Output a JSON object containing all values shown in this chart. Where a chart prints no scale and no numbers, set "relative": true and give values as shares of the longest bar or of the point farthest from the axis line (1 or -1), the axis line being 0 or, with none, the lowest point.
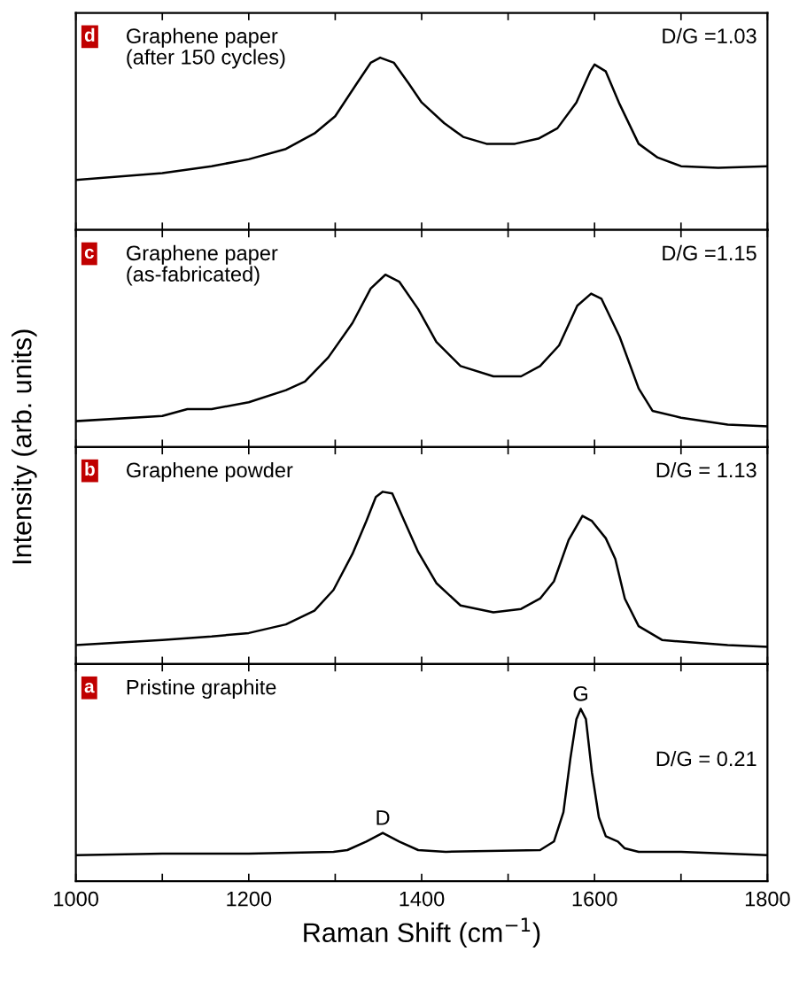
{
  "chart_data": [
    {
      "type": "line",
      "title": "Graphene paper\n(after 150 cycles)",
      "ylabel": "Intensity (arb. units)",
      "annotations": [
        "d",
        "D/G =1.03"
      ],
      "relative": true,
      "xlim": [
        1000,
        1800
      ],
      "xticks": [
        1000,
        {
          "value": 1100,
          "label": null
        },
        1200,
        {
          "value": 1300,
          "label": null
        },
        1400,
        {
          "value": 1500,
          "label": null
        },
        1600,
        {
          "value": 1700,
          "label": null
        },
        1800
      ],
      "tick_labels": false,
      "series": [
        {
          "color": "#000000",
          "x": [
            1000,
            1100,
            1157,
            1200,
            1243,
            1276,
            1300,
            1325,
            1341,
            1352,
            1368,
            1385,
            1400,
            1426,
            1448,
            1475,
            1508,
            1535,
            1557,
            1579,
            1595,
            1600,
            1613,
            1629,
            1651,
            1673,
            1700,
            1743,
            1800
          ],
          "values": [
            0.29,
            0.33,
            0.37,
            0.41,
            0.47,
            0.56,
            0.66,
            0.85,
            0.97,
            1,
            0.97,
            0.85,
            0.74,
            0.62,
            0.54,
            0.5,
            0.5,
            0.53,
            0.59,
            0.74,
            0.92,
            0.96,
            0.92,
            0.73,
            0.5,
            0.42,
            0.37,
            0.36,
            0.37
          ]
        }
      ]
    },
    {
      "type": "line",
      "title": "Graphene paper\n(as-fabricated)",
      "annotations": [
        "c",
        "D/G =1.15"
      ],
      "relative": true,
      "xlim": [
        1000,
        1800
      ],
      "xticks": [
        1000,
        {
          "value": 1100,
          "label": null
        },
        1200,
        {
          "value": 1300,
          "label": null
        },
        1400,
        {
          "value": 1500,
          "label": null
        },
        1600,
        {
          "value": 1700,
          "label": null
        },
        1800
      ],
      "tick_labels": false,
      "series": [
        {
          "color": "#000000",
          "x": [
            1000,
            1100,
            1129,
            1157,
            1200,
            1243,
            1265,
            1292,
            1320,
            1341,
            1358,
            1374,
            1396,
            1417,
            1445,
            1483,
            1515,
            1537,
            1559,
            1580,
            1596,
            1608,
            1629,
            1651,
            1667,
            1700,
            1754,
            1800
          ],
          "values": [
            0.15,
            0.18,
            0.22,
            0.22,
            0.26,
            0.33,
            0.38,
            0.52,
            0.72,
            0.92,
            1,
            0.96,
            0.8,
            0.61,
            0.47,
            0.41,
            0.41,
            0.47,
            0.59,
            0.82,
            0.89,
            0.86,
            0.64,
            0.34,
            0.21,
            0.17,
            0.13,
            0.12
          ]
        }
      ]
    },
    {
      "type": "line",
      "title": "Graphene powder",
      "annotations": [
        "b",
        "D/G = 1.13"
      ],
      "relative": true,
      "xlim": [
        1000,
        1800
      ],
      "xticks": [
        1000,
        {
          "value": 1100,
          "label": null
        },
        1200,
        {
          "value": 1300,
          "label": null
        },
        1400,
        {
          "value": 1500,
          "label": null
        },
        1600,
        {
          "value": 1700,
          "label": null
        },
        1800
      ],
      "tick_labels": false,
      "series": [
        {
          "color": "#000000",
          "x": [
            1000,
            1100,
            1157,
            1200,
            1243,
            1276,
            1298,
            1320,
            1336,
            1347,
            1355,
            1366,
            1380,
            1396,
            1417,
            1445,
            1483,
            1515,
            1537,
            1553,
            1570,
            1586,
            1597,
            1613,
            1624,
            1635,
            1651,
            1678,
            1700,
            1754,
            1800
          ],
          "values": [
            0.11,
            0.14,
            0.16,
            0.18,
            0.23,
            0.31,
            0.43,
            0.64,
            0.83,
            0.97,
            1,
            0.99,
            0.83,
            0.65,
            0.47,
            0.34,
            0.3,
            0.32,
            0.38,
            0.48,
            0.72,
            0.86,
            0.83,
            0.73,
            0.61,
            0.38,
            0.22,
            0.14,
            0.13,
            0.11,
            0.1
          ]
        }
      ]
    },
    {
      "type": "line",
      "title": "Pristine graphite",
      "xlabel": "Raman Shift (cm$^{−1}$)",
      "annotations": [
        "a",
        "D/G = 0.21",
        {
          "text": "D",
          "x": 1355,
          "y": 0.28
        },
        {
          "text": "G",
          "x": 1584,
          "y": 1
        }
      ],
      "relative": true,
      "xlim": [
        1000,
        1800
      ],
      "xticks": [
        1000,
        {
          "value": 1100,
          "label": null
        },
        1200,
        {
          "value": 1300,
          "label": null
        },
        1400,
        {
          "value": 1500,
          "label": null
        },
        1600,
        {
          "value": 1700,
          "label": null
        },
        1800
      ],
      "tick_labels": "x",
      "series": [
        {
          "color": "#000000",
          "x": [
            1000,
            1100,
            1129,
            1200,
            1298,
            1314,
            1336,
            1355,
            1374,
            1396,
            1428,
            1537,
            1553,
            1564,
            1572,
            1579,
            1584,
            1590,
            1597,
            1605,
            1613,
            1627,
            1635,
            1651,
            1700,
            1800
          ],
          "values": [
            0.15,
            0.16,
            0.16,
            0.16,
            0.17,
            0.18,
            0.23,
            0.28,
            0.23,
            0.18,
            0.17,
            0.18,
            0.23,
            0.4,
            0.71,
            0.94,
            1,
            0.94,
            0.63,
            0.37,
            0.26,
            0.23,
            0.19,
            0.17,
            0.17,
            0.15
          ]
        }
      ]
    }
  ]
}
